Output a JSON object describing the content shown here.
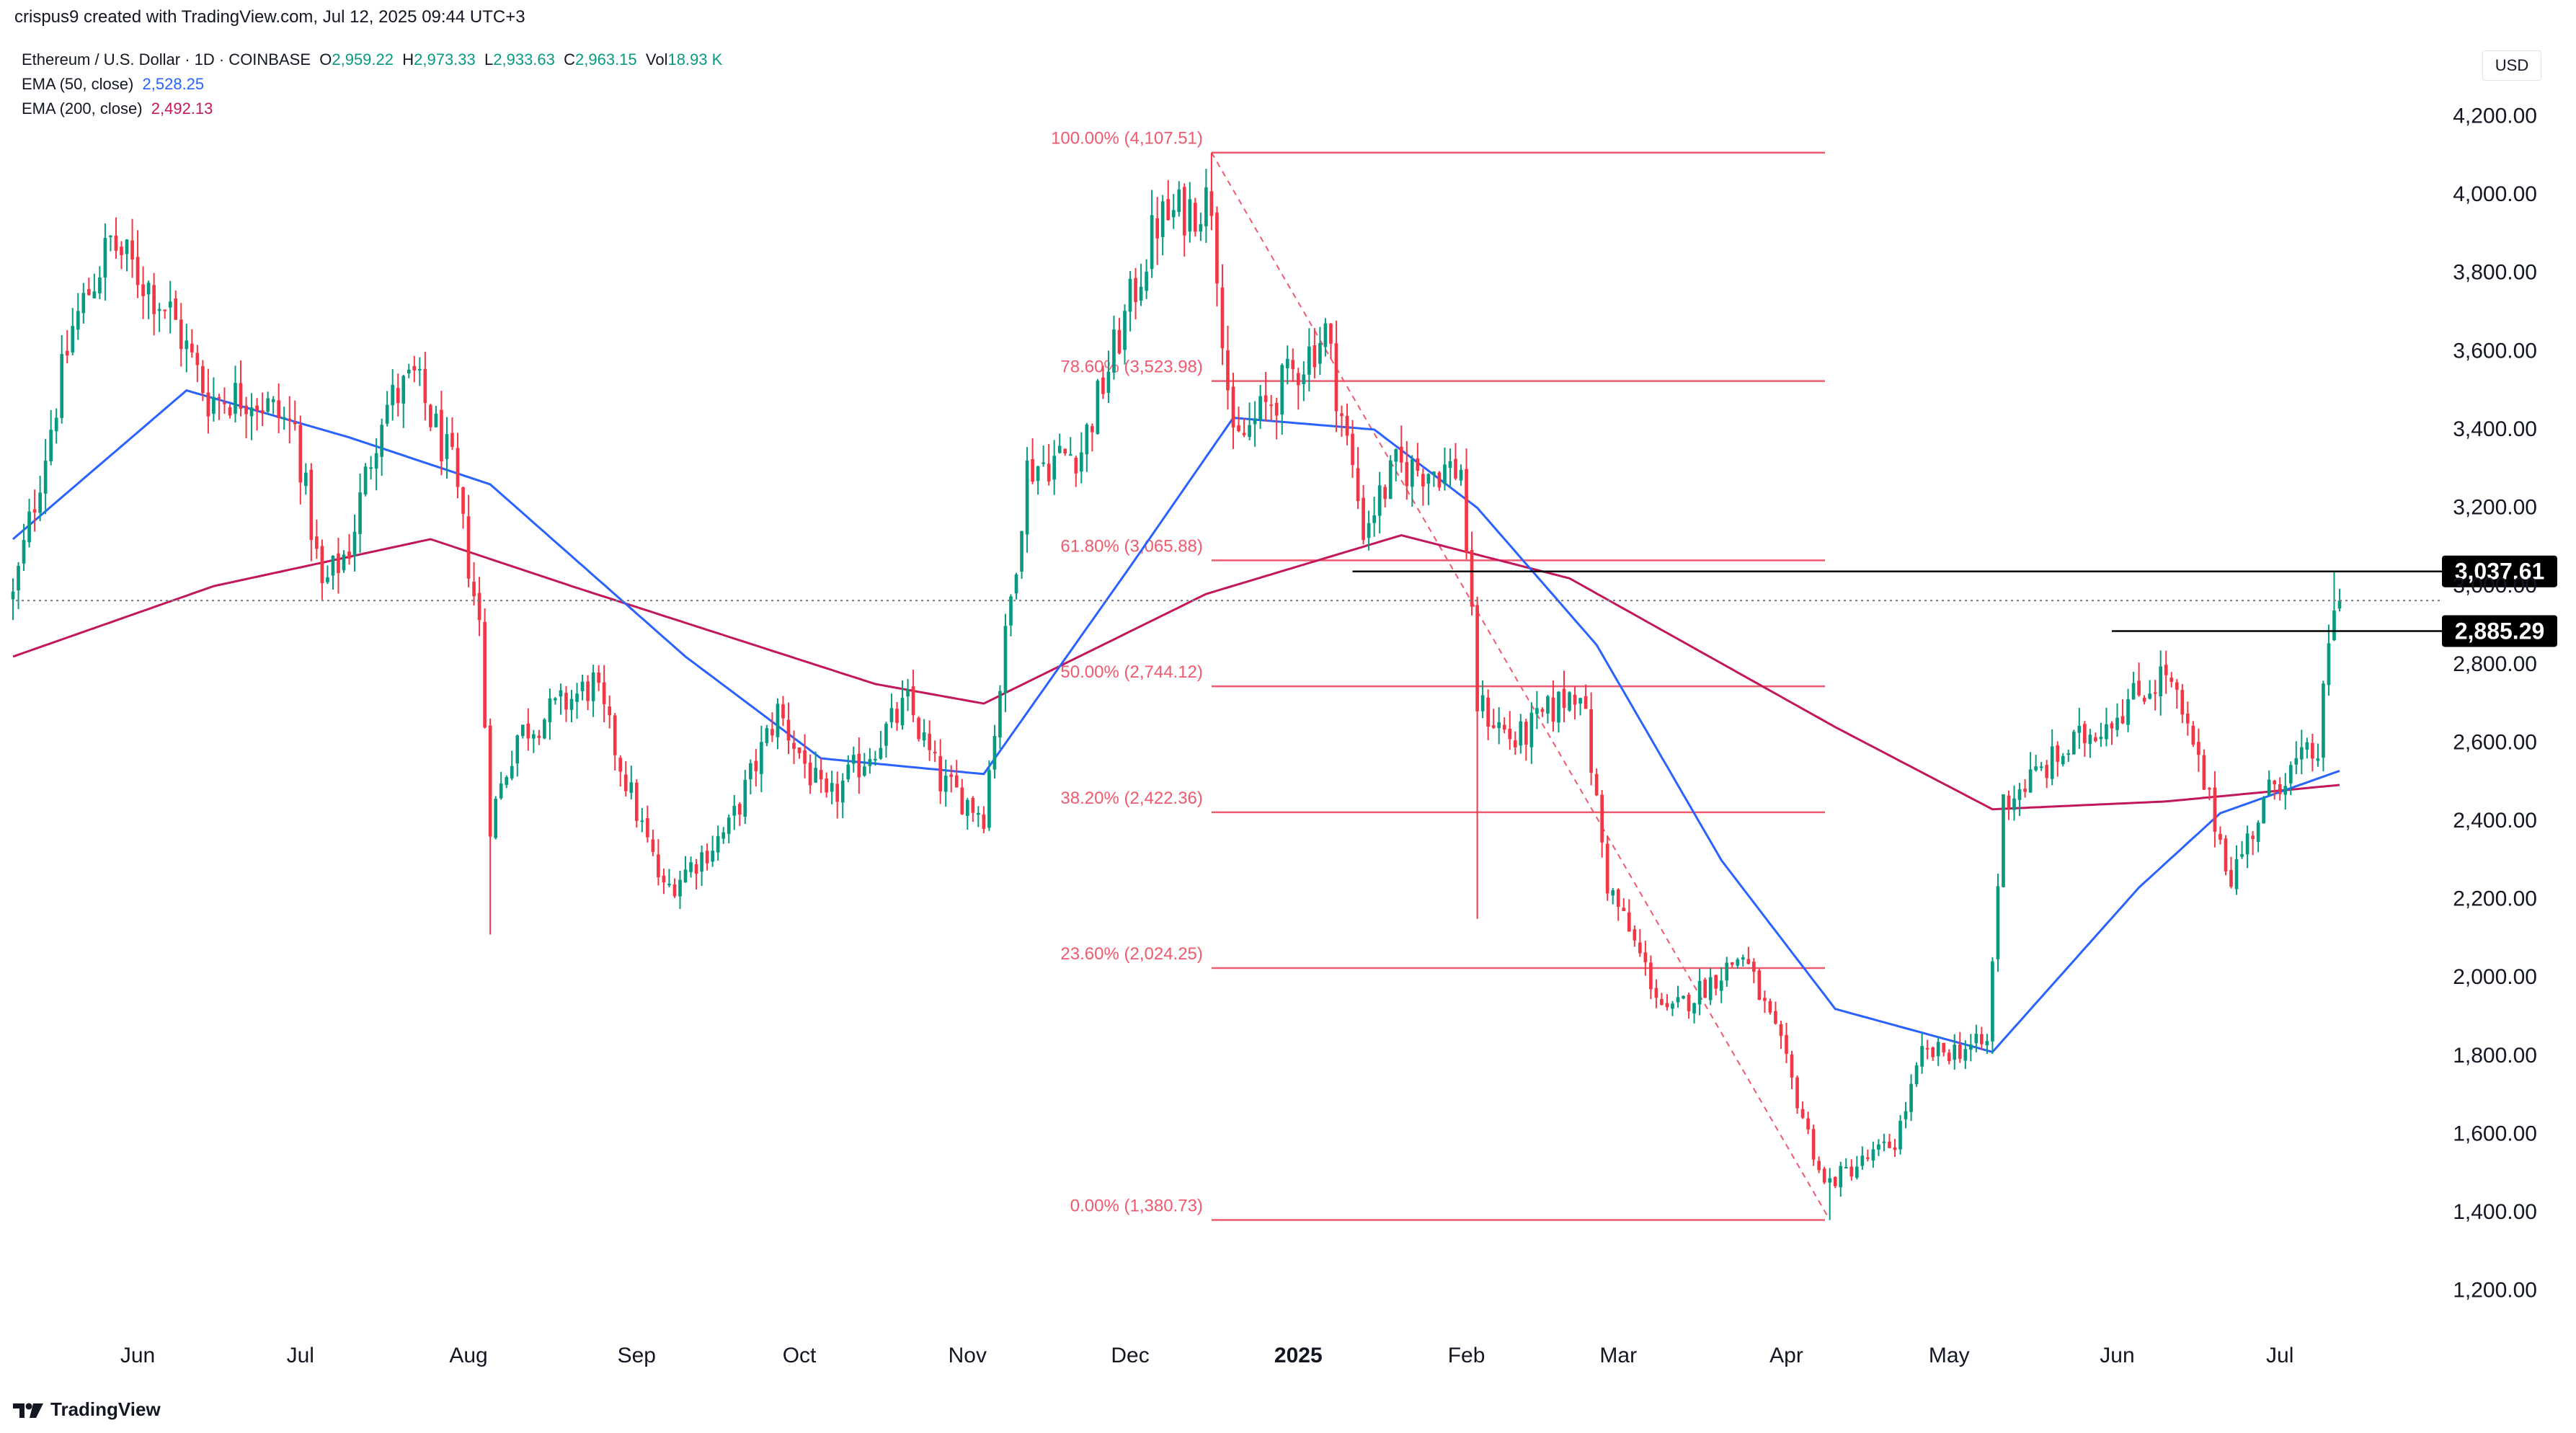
{
  "header": {
    "created_by": "crispus9 created with TradingView.com, Jul 12, 2025 09:44 UTC+3",
    "symbol": "Ethereum / U.S. Dollar · 1D · COINBASE",
    "ohlc": {
      "o_label": "O",
      "o": "2,959.22",
      "h_label": "H",
      "h": "2,973.33",
      "l_label": "L",
      "l": "2,933.63",
      "c_label": "C",
      "c": "2,963.15",
      "vol_label": "Vol",
      "vol": "18.93 K"
    },
    "ema50": {
      "label": "EMA (50, close)",
      "value": "2,528.25"
    },
    "ema200": {
      "label": "EMA (200, close)",
      "value": "2,492.13"
    },
    "currency": "USD",
    "brand": "TradingView"
  },
  "colors": {
    "up": "#089981",
    "down": "#f23645",
    "ema50": "#2962ff",
    "ema200": "#c2185b",
    "fib": "#f05a6e",
    "hline": "#000000"
  },
  "chart_data": {
    "type": "candlestick",
    "title": "Ethereum / U.S. Dollar · 1D · COINBASE",
    "ylim": [
      1100,
      4350
    ],
    "y_ticks": [
      1200,
      1400,
      1600,
      1800,
      2000,
      2200,
      2400,
      2600,
      2800,
      3000,
      3200,
      3400,
      3600,
      3800,
      4000,
      4200
    ],
    "x_labels": [
      "Jun",
      "Jul",
      "Aug",
      "Sep",
      "Oct",
      "Nov",
      "Dec",
      "2025",
      "Feb",
      "Mar",
      "Apr",
      "May",
      "Jun",
      "Jul"
    ],
    "x_label_dates": [
      "2024-06-01",
      "2024-07-01",
      "2024-08-01",
      "2024-09-01",
      "2024-10-01",
      "2024-11-01",
      "2024-12-01",
      "2025-01-01",
      "2025-02-01",
      "2025-03-01",
      "2025-04-01",
      "2025-05-01",
      "2025-06-01",
      "2025-07-01"
    ],
    "start_date": "2024-05-09",
    "end_date": "2025-07-12",
    "last_price": 2963.15,
    "close_path": [
      {
        "date": "2024-05-09",
        "close": 2970
      },
      {
        "date": "2024-05-20",
        "close": 3660
      },
      {
        "date": "2024-05-27",
        "close": 3880
      },
      {
        "date": "2024-06-07",
        "close": 3700
      },
      {
        "date": "2024-06-14",
        "close": 3480
      },
      {
        "date": "2024-06-22",
        "close": 3490
      },
      {
        "date": "2024-06-30",
        "close": 3400
      },
      {
        "date": "2024-07-05",
        "close": 2990
      },
      {
        "date": "2024-07-10",
        "close": 3100
      },
      {
        "date": "2024-07-16",
        "close": 3450
      },
      {
        "date": "2024-07-22",
        "close": 3530
      },
      {
        "date": "2024-07-29",
        "close": 3300
      },
      {
        "date": "2024-08-03",
        "close": 2900
      },
      {
        "date": "2024-08-05",
        "close": 2400
      },
      {
        "date": "2024-08-10",
        "close": 2620
      },
      {
        "date": "2024-08-24",
        "close": 2750
      },
      {
        "date": "2024-09-06",
        "close": 2220
      },
      {
        "date": "2024-09-18",
        "close": 2380
      },
      {
        "date": "2024-09-27",
        "close": 2680
      },
      {
        "date": "2024-10-06",
        "close": 2440
      },
      {
        "date": "2024-10-21",
        "close": 2700
      },
      {
        "date": "2024-10-27",
        "close": 2500
      },
      {
        "date": "2024-11-04",
        "close": 2420
      },
      {
        "date": "2024-11-12",
        "close": 3300
      },
      {
        "date": "2024-11-22",
        "close": 3350
      },
      {
        "date": "2024-12-06",
        "close": 3930
      },
      {
        "date": "2024-12-16",
        "close": 3990
      },
      {
        "date": "2024-12-20",
        "close": 3350
      },
      {
        "date": "2025-01-06",
        "close": 3650
      },
      {
        "date": "2025-01-13",
        "close": 3150
      },
      {
        "date": "2025-01-19",
        "close": 3300
      },
      {
        "date": "2025-01-31",
        "close": 3300
      },
      {
        "date": "2025-02-03",
        "close": 2700
      },
      {
        "date": "2025-02-10",
        "close": 2600
      },
      {
        "date": "2025-02-22",
        "close": 2750
      },
      {
        "date": "2025-02-27",
        "close": 2240
      },
      {
        "date": "2025-03-10",
        "close": 1900
      },
      {
        "date": "2025-03-24",
        "close": 2060
      },
      {
        "date": "2025-03-31",
        "close": 1820
      },
      {
        "date": "2025-04-08",
        "close": 1470
      },
      {
        "date": "2025-04-21",
        "close": 1580
      },
      {
        "date": "2025-04-26",
        "close": 1800
      },
      {
        "date": "2025-05-08",
        "close": 1830
      },
      {
        "date": "2025-05-11",
        "close": 2450
      },
      {
        "date": "2025-05-20",
        "close": 2550
      },
      {
        "date": "2025-06-10",
        "close": 2780
      },
      {
        "date": "2025-06-16",
        "close": 2540
      },
      {
        "date": "2025-06-22",
        "close": 2260
      },
      {
        "date": "2025-06-30",
        "close": 2500
      },
      {
        "date": "2025-07-08",
        "close": 2580
      },
      {
        "date": "2025-07-11",
        "close": 2960
      },
      {
        "date": "2025-07-12",
        "close": 2963
      }
    ],
    "candle_extremes": [
      {
        "date": "2024-08-05",
        "low": 2110
      },
      {
        "date": "2024-12-16",
        "high": 4107.51
      },
      {
        "date": "2025-02-03",
        "low": 2150
      },
      {
        "date": "2025-04-09",
        "low": 1380.73
      },
      {
        "date": "2025-07-11",
        "high": 3037.61
      }
    ],
    "ema50": [
      {
        "date": "2024-05-09",
        "value": 3120
      },
      {
        "date": "2024-06-10",
        "value": 3500
      },
      {
        "date": "2024-07-10",
        "value": 3380
      },
      {
        "date": "2024-08-05",
        "value": 3260
      },
      {
        "date": "2024-09-10",
        "value": 2820
      },
      {
        "date": "2024-10-05",
        "value": 2560
      },
      {
        "date": "2024-11-04",
        "value": 2520
      },
      {
        "date": "2024-12-01",
        "value": 3050
      },
      {
        "date": "2024-12-20",
        "value": 3430
      },
      {
        "date": "2025-01-15",
        "value": 3400
      },
      {
        "date": "2025-02-03",
        "value": 3200
      },
      {
        "date": "2025-02-25",
        "value": 2850
      },
      {
        "date": "2025-03-20",
        "value": 2300
      },
      {
        "date": "2025-04-10",
        "value": 1920
      },
      {
        "date": "2025-05-09",
        "value": 1810
      },
      {
        "date": "2025-06-05",
        "value": 2230
      },
      {
        "date": "2025-06-20",
        "value": 2420
      },
      {
        "date": "2025-07-12",
        "value": 2528.25
      }
    ],
    "ema200": [
      {
        "date": "2024-05-09",
        "value": 2820
      },
      {
        "date": "2024-06-15",
        "value": 3000
      },
      {
        "date": "2024-07-25",
        "value": 3120
      },
      {
        "date": "2024-08-20",
        "value": 3000
      },
      {
        "date": "2024-10-15",
        "value": 2750
      },
      {
        "date": "2024-11-04",
        "value": 2700
      },
      {
        "date": "2024-12-15",
        "value": 2980
      },
      {
        "date": "2025-01-20",
        "value": 3130
      },
      {
        "date": "2025-02-20",
        "value": 3020
      },
      {
        "date": "2025-04-10",
        "value": 2640
      },
      {
        "date": "2025-05-09",
        "value": 2430
      },
      {
        "date": "2025-06-10",
        "value": 2450
      },
      {
        "date": "2025-07-12",
        "value": 2492.13
      }
    ],
    "fibonacci": {
      "from_date": "2024-12-16",
      "to_date": "2025-04-09",
      "line_start_date": "2024-12-16",
      "line_end_date": "2025-04-09",
      "levels": [
        {
          "label": "100.00% (4,107.51)",
          "value": 4107.51
        },
        {
          "label": "78.60% (3,523.98)",
          "value": 3523.98
        },
        {
          "label": "61.80% (3,065.88)",
          "value": 3065.88
        },
        {
          "label": "50.00% (2,744.12)",
          "value": 2744.12
        },
        {
          "label": "38.20% (2,422.36)",
          "value": 2422.36
        },
        {
          "label": "23.60% (2,024.25)",
          "value": 2024.25
        },
        {
          "label": "0.00% (1,380.73)",
          "value": 1380.73
        }
      ]
    },
    "horizontal_lines": [
      {
        "label": "3,037.61",
        "value": 3037.61,
        "from_date": "2025-01-11"
      },
      {
        "label": "2,885.29",
        "value": 2885.29,
        "from_date": "2025-05-31"
      }
    ]
  }
}
